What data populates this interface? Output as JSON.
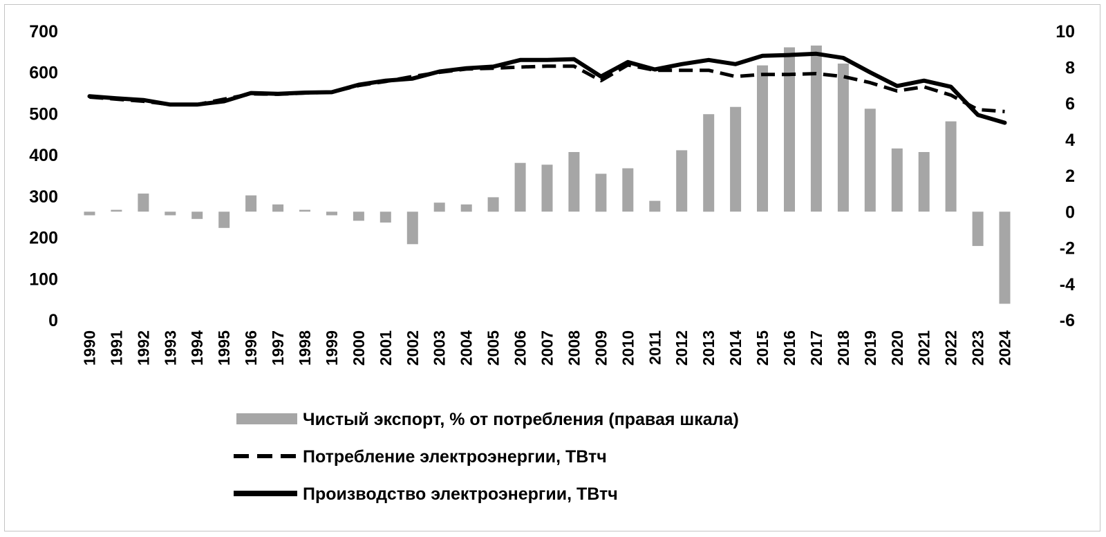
{
  "chart_data": {
    "type": "bar+line",
    "title": "",
    "x": [
      "1990",
      "1991",
      "1992",
      "1993",
      "1994",
      "1995",
      "1996",
      "1997",
      "1998",
      "1999",
      "2000",
      "2001",
      "2002",
      "2003",
      "2004",
      "2005",
      "2006",
      "2007",
      "2008",
      "2009",
      "2010",
      "2011",
      "2012",
      "2013",
      "2014",
      "2015",
      "2016",
      "2017",
      "2018",
      "2019",
      "2020",
      "2021",
      "2022",
      "2023",
      "2024"
    ],
    "y_left": {
      "ticks": [
        "0",
        "100",
        "200",
        "300",
        "400",
        "500",
        "600",
        "700"
      ],
      "lim": [
        0,
        700
      ]
    },
    "y_right": {
      "ticks": [
        "-6",
        "-4",
        "-2",
        "0",
        "2",
        "4",
        "6",
        "8",
        "10"
      ],
      "lim": [
        -6,
        10
      ]
    },
    "series": [
      {
        "name": "Чистый экспорт, % от потребления (правая шкала)",
        "type": "bar",
        "axis": "right",
        "color": "#a6a6a6",
        "values": [
          -0.2,
          0.1,
          1.0,
          -0.2,
          -0.4,
          -0.9,
          0.9,
          0.4,
          0.1,
          -0.2,
          -0.5,
          -0.6,
          -1.8,
          0.5,
          0.4,
          0.8,
          2.7,
          2.6,
          3.3,
          2.1,
          2.4,
          0.6,
          3.4,
          5.4,
          5.8,
          8.1,
          9.1,
          9.2,
          8.2,
          5.7,
          3.5,
          3.3,
          5.0,
          -1.9,
          -5.1
        ]
      },
      {
        "name": "Потребление электроэнергии, ТВтч",
        "type": "line",
        "axis": "left",
        "style": "dashed",
        "color": "#000000",
        "values": [
          540,
          535,
          530,
          522,
          522,
          535,
          548,
          547,
          550,
          552,
          568,
          578,
          590,
          600,
          608,
          610,
          613,
          615,
          615,
          580,
          618,
          605,
          605,
          605,
          590,
          595,
          595,
          597,
          590,
          575,
          555,
          565,
          545,
          510,
          505
        ]
      },
      {
        "name": "Производство электроэнергии, ТВтч",
        "type": "line",
        "axis": "left",
        "style": "solid",
        "color": "#000000",
        "values": [
          542,
          537,
          533,
          522,
          522,
          530,
          550,
          548,
          551,
          552,
          570,
          580,
          585,
          602,
          610,
          614,
          630,
          630,
          632,
          590,
          625,
          607,
          620,
          630,
          620,
          640,
          642,
          645,
          635,
          600,
          567,
          580,
          565,
          497,
          478
        ]
      }
    ],
    "legend": {
      "placement": "bottom"
    },
    "grid": false
  }
}
